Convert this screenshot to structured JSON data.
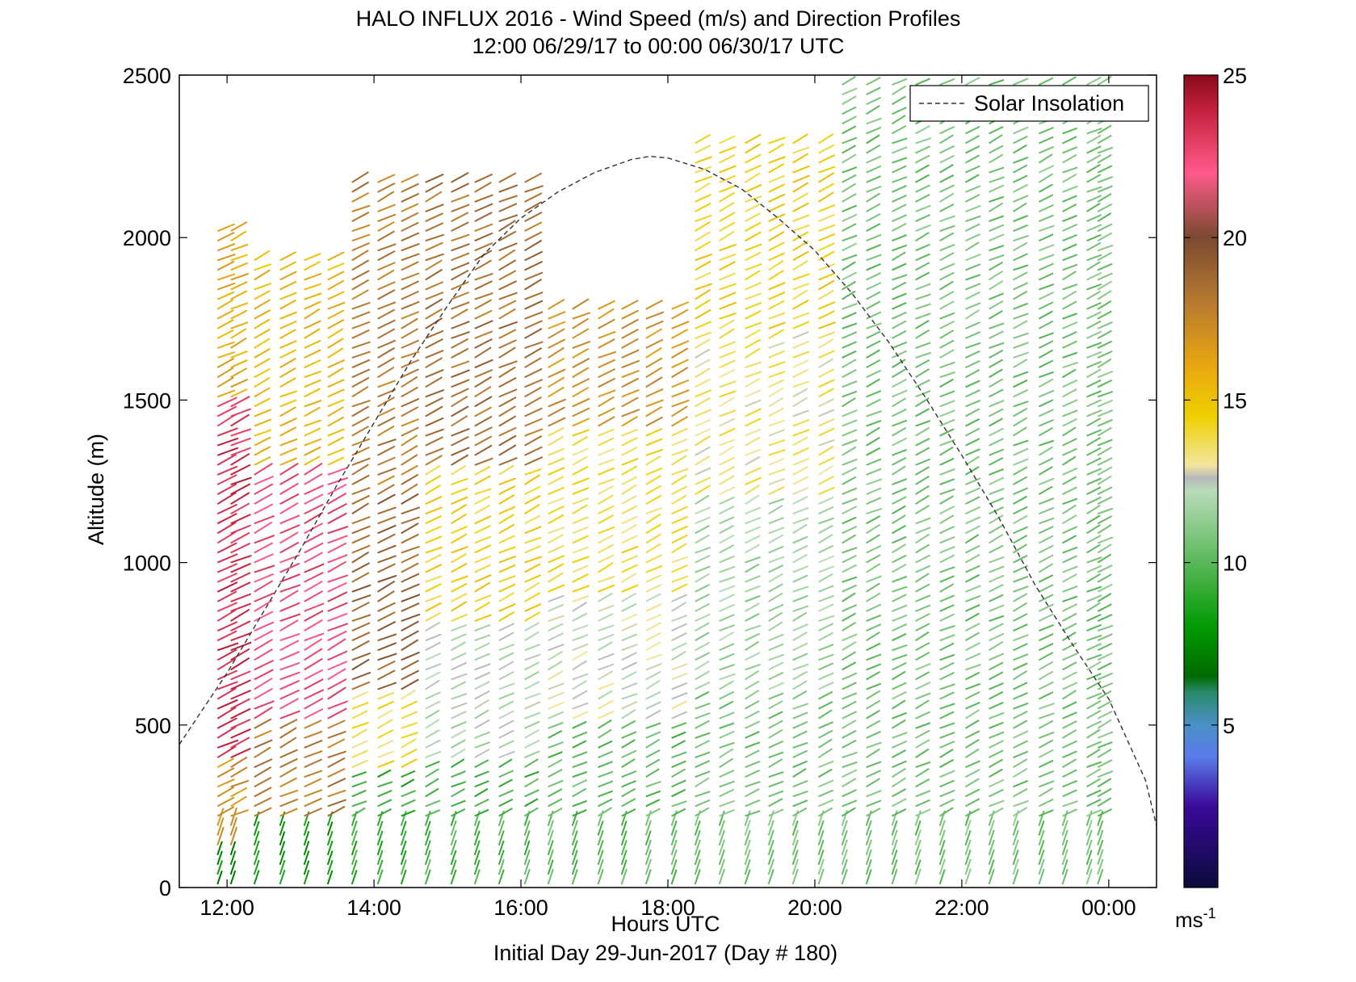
{
  "chart_data": {
    "type": "wind-barb-profile",
    "title": "HALO INFLUX 2016 - Wind Speed (m/s) and Direction Profiles",
    "subtitle": "12:00 06/29/17 to 00:00 06/30/17  UTC",
    "xlabel": "Hours UTC",
    "footer": "Initial Day 29-Jun-2017 (Day # 180)",
    "ylabel": "Altitude (m)",
    "x_range_hours": [
      11.35,
      24.65
    ],
    "y_range_m": [
      0,
      2500
    ],
    "x_ticks": [
      {
        "value": 12,
        "label": "12:00"
      },
      {
        "value": 14,
        "label": "14:00"
      },
      {
        "value": 16,
        "label": "16:00"
      },
      {
        "value": 18,
        "label": "18:00"
      },
      {
        "value": 20,
        "label": "20:00"
      },
      {
        "value": 22,
        "label": "22:00"
      },
      {
        "value": 24,
        "label": "00:00"
      }
    ],
    "y_ticks": [
      0,
      500,
      1000,
      1500,
      2000,
      2500
    ],
    "colorbar": {
      "range": [
        0,
        25
      ],
      "ticks": [
        5,
        10,
        15,
        20,
        25
      ],
      "unit_label": "ms",
      "unit_exponent": "-1",
      "stops": [
        {
          "v": 0,
          "c": "#0a0a3a"
        },
        {
          "v": 2.5,
          "c": "#3a0a9a"
        },
        {
          "v": 4,
          "c": "#5a7ae8"
        },
        {
          "v": 5,
          "c": "#4a90c8"
        },
        {
          "v": 6,
          "c": "#2a8a6a"
        },
        {
          "v": 6.5,
          "c": "#006a00"
        },
        {
          "v": 8,
          "c": "#009a00"
        },
        {
          "v": 10,
          "c": "#5ab85a"
        },
        {
          "v": 12.2,
          "c": "#b8dcb8"
        },
        {
          "v": 12.6,
          "c": "#b8b8b8"
        },
        {
          "v": 13,
          "c": "#f2e6a0"
        },
        {
          "v": 14.5,
          "c": "#eed000"
        },
        {
          "v": 16,
          "c": "#e8a810"
        },
        {
          "v": 18,
          "c": "#b87a30"
        },
        {
          "v": 20,
          "c": "#7a4a30"
        },
        {
          "v": 22,
          "c": "#ff5a8a"
        },
        {
          "v": 24,
          "c": "#c0203a"
        },
        {
          "v": 25,
          "c": "#8a0a1a"
        }
      ]
    },
    "legend": {
      "label": "Solar Insolation",
      "position": "top-right",
      "line_style": "dashed"
    },
    "solar_insolation_curve": {
      "x": [
        11.35,
        12,
        12.5,
        13,
        13.5,
        14,
        14.5,
        15,
        15.5,
        16,
        16.5,
        17,
        17.5,
        17.75,
        18,
        18.5,
        19,
        19.5,
        20,
        20.5,
        21,
        21.5,
        22,
        22.5,
        23,
        23.5,
        24,
        24.5,
        24.65
      ],
      "y": [
        440,
        660,
        850,
        1040,
        1240,
        1430,
        1620,
        1790,
        1950,
        2060,
        2140,
        2200,
        2240,
        2250,
        2245,
        2210,
        2150,
        2060,
        1960,
        1830,
        1680,
        1510,
        1330,
        1140,
        930,
        750,
        580,
        330,
        190
      ]
    },
    "profiles": {
      "times_hours": [
        11.87,
        12.05,
        12.37,
        12.72,
        13.05,
        13.37,
        13.7,
        14.05,
        14.37,
        14.7,
        15.05,
        15.37,
        15.7,
        16.05,
        16.37,
        16.7,
        17.05,
        17.37,
        17.7,
        18.05,
        18.37,
        18.7,
        19.05,
        19.37,
        19.7,
        20.05,
        20.37,
        20.7,
        21.05,
        21.37,
        21.7,
        22.05,
        22.37,
        22.7,
        23.05,
        23.37,
        23.7,
        23.85
      ],
      "altitude_step_m": 30,
      "speed_bands_m_s": [
        {
          "t0": 11.8,
          "t1": 12.2,
          "layers": [
            [
              0,
              130,
              7.5
            ],
            [
              130,
              400,
              17
            ],
            [
              400,
              1500,
              23.5
            ],
            [
              1500,
              2050,
              16
            ]
          ]
        },
        {
          "t0": 12.2,
          "t1": 13.4,
          "layers": [
            [
              0,
              200,
              8
            ],
            [
              200,
              500,
              18
            ],
            [
              500,
              1300,
              22.5
            ],
            [
              1300,
              1950,
              15.5
            ]
          ]
        },
        {
          "t0": 13.4,
          "t1": 14.6,
          "layers": [
            [
              0,
              350,
              9
            ],
            [
              350,
              600,
              14
            ],
            [
              600,
              1200,
              19
            ],
            [
              1200,
              2200,
              18
            ]
          ]
        },
        {
          "t0": 14.6,
          "t1": 16.2,
          "layers": [
            [
              0,
              400,
              9.5
            ],
            [
              400,
              800,
              12
            ],
            [
              800,
              1300,
              14.5
            ],
            [
              1300,
              2200,
              18.5
            ]
          ]
        },
        {
          "t0": 16.2,
          "t1": 18.2,
          "layers": [
            [
              0,
              500,
              10
            ],
            [
              500,
              900,
              12.5
            ],
            [
              900,
              1400,
              14
            ],
            [
              1400,
              1800,
              17
            ]
          ]
        },
        {
          "t0": 18.2,
          "t1": 20.2,
          "layers": [
            [
              0,
              600,
              10.5
            ],
            [
              600,
              1200,
              11.5
            ],
            [
              1200,
              1700,
              13.5
            ],
            [
              1700,
              2300,
              14.5
            ]
          ]
        },
        {
          "t0": 20.2,
          "t1": 23.9,
          "layers": [
            [
              0,
              2500,
              10.5
            ]
          ]
        }
      ],
      "direction": "mostly west-southwesterly, shafts point toward the upper right"
    }
  }
}
